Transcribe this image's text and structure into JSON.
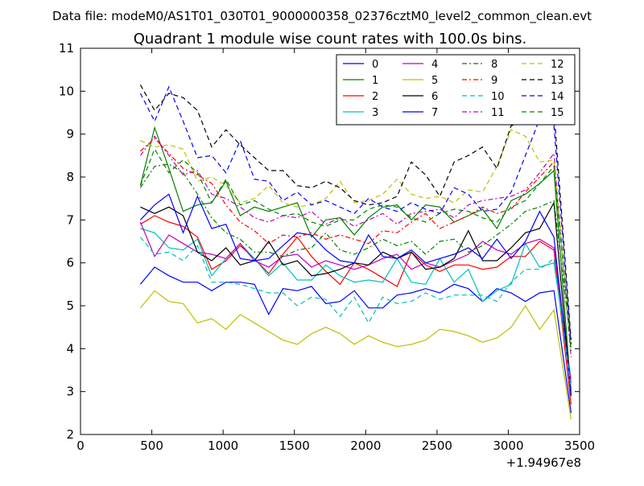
{
  "suptitle": "Data file: modeM0/AS1T01_030T01_9000000358_02376cztM0_level2_common_clean.evt",
  "chart_data": {
    "type": "line",
    "title": "Quadrant 1 module wise count rates with 100.0s bins.",
    "xlabel": "",
    "ylabel": "",
    "x_offset_label": "+1.94967e8",
    "xlim": [
      0,
      3500
    ],
    "ylim": [
      2,
      11
    ],
    "xticks": [
      0,
      500,
      1000,
      1500,
      2000,
      2500,
      3000,
      3500
    ],
    "yticks": [
      2,
      3,
      4,
      5,
      6,
      7,
      8,
      9,
      10,
      11
    ],
    "grid": false,
    "legend_position": "top-right",
    "legend_columns": 4,
    "x": [
      420,
      520,
      620,
      720,
      820,
      920,
      1020,
      1120,
      1220,
      1320,
      1420,
      1520,
      1620,
      1720,
      1820,
      1920,
      2020,
      2120,
      2220,
      2320,
      2420,
      2520,
      2620,
      2720,
      2820,
      2920,
      3020,
      3120,
      3220,
      3320,
      3440
    ],
    "series": [
      {
        "name": "0",
        "color": "#0000ff",
        "dash": "solid",
        "values": [
          5.5,
          5.9,
          5.7,
          5.55,
          5.55,
          5.35,
          5.55,
          5.55,
          5.5,
          4.8,
          5.4,
          5.35,
          5.45,
          5.05,
          5.1,
          5.35,
          4.95,
          4.95,
          5.25,
          5.3,
          5.4,
          5.3,
          5.5,
          5.4,
          5.1,
          5.4,
          5.3,
          5.1,
          5.3,
          5.35,
          2.5
        ]
      },
      {
        "name": "1",
        "color": "#008000",
        "dash": "solid",
        "values": [
          7.8,
          9.15,
          8.2,
          7.2,
          7.35,
          7.4,
          7.9,
          7.1,
          7.3,
          7.2,
          7.3,
          7.4,
          6.6,
          7.0,
          7.05,
          6.65,
          7.05,
          7.3,
          7.35,
          7.0,
          7.35,
          7.3,
          6.95,
          7.1,
          7.25,
          6.8,
          7.45,
          7.6,
          7.85,
          8.15,
          3.0
        ]
      },
      {
        "name": "2",
        "color": "#ff0000",
        "dash": "solid",
        "values": [
          6.9,
          7.1,
          6.95,
          6.85,
          6.6,
          5.85,
          6.05,
          6.4,
          6.1,
          5.75,
          6.2,
          6.6,
          6.15,
          5.8,
          5.5,
          6.0,
          5.85,
          5.65,
          5.45,
          6.25,
          5.95,
          5.8,
          5.95,
          5.95,
          5.85,
          5.9,
          6.15,
          6.15,
          6.5,
          6.3,
          2.7
        ]
      },
      {
        "name": "3",
        "color": "#00bfbf",
        "dash": "solid",
        "values": [
          6.8,
          6.7,
          6.35,
          6.3,
          6.55,
          5.7,
          6.1,
          6.45,
          6.1,
          5.7,
          6.0,
          5.6,
          5.6,
          5.95,
          5.7,
          5.55,
          5.6,
          5.55,
          6.1,
          5.55,
          5.5,
          6.1,
          5.55,
          5.85,
          5.1,
          5.35,
          5.5,
          6.45,
          5.9,
          6.0,
          3.3
        ]
      },
      {
        "name": "4",
        "color": "#bf00bf",
        "dash": "solid",
        "values": [
          6.95,
          6.15,
          6.65,
          6.45,
          6.25,
          6.2,
          6.1,
          6.45,
          6.05,
          5.9,
          6.15,
          6.2,
          5.9,
          6.05,
          5.95,
          5.85,
          5.95,
          6.1,
          6.2,
          5.85,
          6.0,
          5.9,
          6.05,
          6.2,
          6.5,
          6.3,
          6.2,
          6.45,
          6.55,
          6.35,
          3.2
        ]
      },
      {
        "name": "5",
        "color": "#bfbf00",
        "dash": "solid",
        "values": [
          4.95,
          5.35,
          5.1,
          5.05,
          4.6,
          4.7,
          4.45,
          4.8,
          4.6,
          4.4,
          4.2,
          4.1,
          4.35,
          4.5,
          4.35,
          4.1,
          4.3,
          4.15,
          4.05,
          4.1,
          4.2,
          4.45,
          4.4,
          4.3,
          4.15,
          4.25,
          4.5,
          5.0,
          4.45,
          4.9,
          2.35
        ]
      },
      {
        "name": "6",
        "color": "#000000",
        "dash": "solid",
        "values": [
          7.3,
          7.15,
          7.3,
          7.1,
          6.25,
          6.05,
          6.35,
          5.95,
          6.05,
          6.5,
          5.95,
          6.05,
          5.7,
          5.75,
          5.85,
          6.0,
          5.95,
          6.25,
          6.1,
          6.25,
          5.85,
          5.9,
          6.1,
          6.75,
          6.05,
          6.05,
          6.35,
          6.7,
          6.8,
          7.4,
          2.9
        ]
      },
      {
        "name": "7",
        "color": "#0000ff",
        "dash": "solid",
        "values": [
          7.0,
          7.35,
          7.6,
          6.7,
          7.55,
          6.8,
          6.9,
          6.1,
          6.05,
          6.1,
          6.4,
          6.7,
          6.65,
          6.3,
          6.05,
          6.0,
          6.65,
          6.15,
          6.1,
          6.3,
          6.0,
          6.1,
          6.2,
          6.35,
          6.1,
          6.55,
          6.1,
          6.5,
          7.2,
          6.6,
          2.95
        ]
      },
      {
        "name": "8",
        "color": "#008000",
        "dash": "dashdot",
        "values": [
          7.75,
          8.25,
          8.3,
          8.1,
          7.6,
          7.05,
          6.7,
          6.55,
          6.25,
          6.25,
          6.15,
          6.3,
          6.35,
          6.7,
          6.3,
          6.2,
          6.35,
          6.55,
          6.4,
          6.5,
          6.2,
          6.5,
          6.55,
          6.25,
          6.4,
          6.65,
          6.9,
          7.2,
          7.3,
          7.45,
          4.1
        ]
      },
      {
        "name": "9",
        "color": "#ff0000",
        "dash": "dashdot",
        "values": [
          8.6,
          8.9,
          8.55,
          8.2,
          8.05,
          7.85,
          7.35,
          6.95,
          6.75,
          6.45,
          6.65,
          6.6,
          6.7,
          6.55,
          6.65,
          6.55,
          6.45,
          6.75,
          6.7,
          6.95,
          7.15,
          6.8,
          6.95,
          7.1,
          7.3,
          7.15,
          7.25,
          7.65,
          8.0,
          8.35,
          4.0
        ]
      },
      {
        "name": "10",
        "color": "#00bfbf",
        "dash": "dashed",
        "values": [
          6.6,
          6.2,
          6.25,
          6.05,
          6.4,
          5.55,
          5.55,
          5.5,
          5.4,
          5.3,
          5.3,
          5.0,
          5.2,
          5.15,
          4.75,
          5.2,
          4.6,
          5.2,
          5.05,
          5.1,
          5.3,
          5.15,
          5.25,
          5.25,
          5.25,
          5.1,
          5.55,
          5.85,
          5.85,
          6.1,
          3.1
        ]
      },
      {
        "name": "11",
        "color": "#bf00bf",
        "dash": "dashdot",
        "values": [
          8.5,
          8.95,
          8.5,
          8.05,
          8.15,
          7.6,
          7.5,
          7.3,
          7.05,
          6.95,
          7.1,
          7.05,
          7.2,
          6.9,
          7.05,
          6.85,
          7.0,
          7.15,
          6.9,
          7.15,
          7.2,
          7.25,
          7.05,
          7.35,
          7.45,
          7.5,
          7.55,
          7.7,
          8.1,
          8.55,
          3.8
        ]
      },
      {
        "name": "12",
        "color": "#bfbf00",
        "dash": "dashed",
        "values": [
          8.85,
          8.7,
          8.75,
          8.65,
          7.9,
          8.0,
          7.8,
          7.4,
          7.5,
          7.8,
          7.4,
          7.3,
          7.35,
          7.5,
          7.9,
          7.4,
          7.45,
          7.6,
          7.95,
          7.6,
          7.5,
          7.55,
          7.4,
          7.7,
          7.65,
          8.25,
          9.1,
          8.95,
          8.35,
          8.4,
          4.0
        ]
      },
      {
        "name": "13",
        "color": "#000000",
        "dash": "dashed",
        "values": [
          10.15,
          9.55,
          9.95,
          9.85,
          9.55,
          8.7,
          9.1,
          8.75,
          8.45,
          8.15,
          8.15,
          7.8,
          7.75,
          7.9,
          7.75,
          7.45,
          7.35,
          7.4,
          7.55,
          8.35,
          8.05,
          7.55,
          8.35,
          8.5,
          8.7,
          8.2,
          9.2,
          9.25,
          9.65,
          9.55,
          4.2
        ]
      },
      {
        "name": "14",
        "color": "#0000ff",
        "dash": "dashed",
        "values": [
          9.95,
          9.3,
          10.1,
          9.3,
          8.45,
          8.5,
          8.1,
          8.85,
          7.95,
          7.9,
          7.45,
          7.65,
          7.35,
          7.45,
          7.3,
          7.15,
          7.5,
          7.3,
          7.2,
          7.4,
          7.25,
          7.15,
          7.75,
          7.6,
          7.2,
          7.25,
          7.65,
          8.5,
          9.35,
          9.2,
          4.1
        ]
      },
      {
        "name": "15",
        "color": "#008000",
        "dash": "dashed",
        "values": [
          7.8,
          8.65,
          8.1,
          8.4,
          8.1,
          7.4,
          7.95,
          7.35,
          7.45,
          7.25,
          7.1,
          7.15,
          6.95,
          6.85,
          7.0,
          7.0,
          7.25,
          7.35,
          7.3,
          7.05,
          6.95,
          7.15,
          7.25,
          7.2,
          7.05,
          6.95,
          7.3,
          7.45,
          7.85,
          8.25,
          3.95
        ]
      }
    ]
  }
}
